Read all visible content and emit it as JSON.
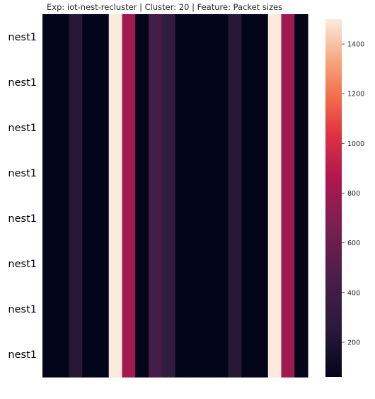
{
  "chart_data": {
    "type": "heatmap",
    "title": "Exp: iot-nest-recluster | Cluster: 20 | Feature: Packet sizes",
    "row_labels": [
      "nest1",
      "nest1",
      "nest1",
      "nest1",
      "nest1",
      "nest1",
      "nest1",
      "nest1"
    ],
    "column_values": [
      60,
      60,
      240,
      60,
      60,
      1500,
      800,
      60,
      420,
      300,
      60,
      60,
      60,
      60,
      240,
      60,
      60,
      1500,
      800,
      60
    ],
    "colorbar": {
      "min": 60,
      "max": 1500,
      "ticks": [
        200,
        400,
        600,
        800,
        1000,
        1200,
        1400
      ],
      "colormap": "rocket"
    }
  }
}
